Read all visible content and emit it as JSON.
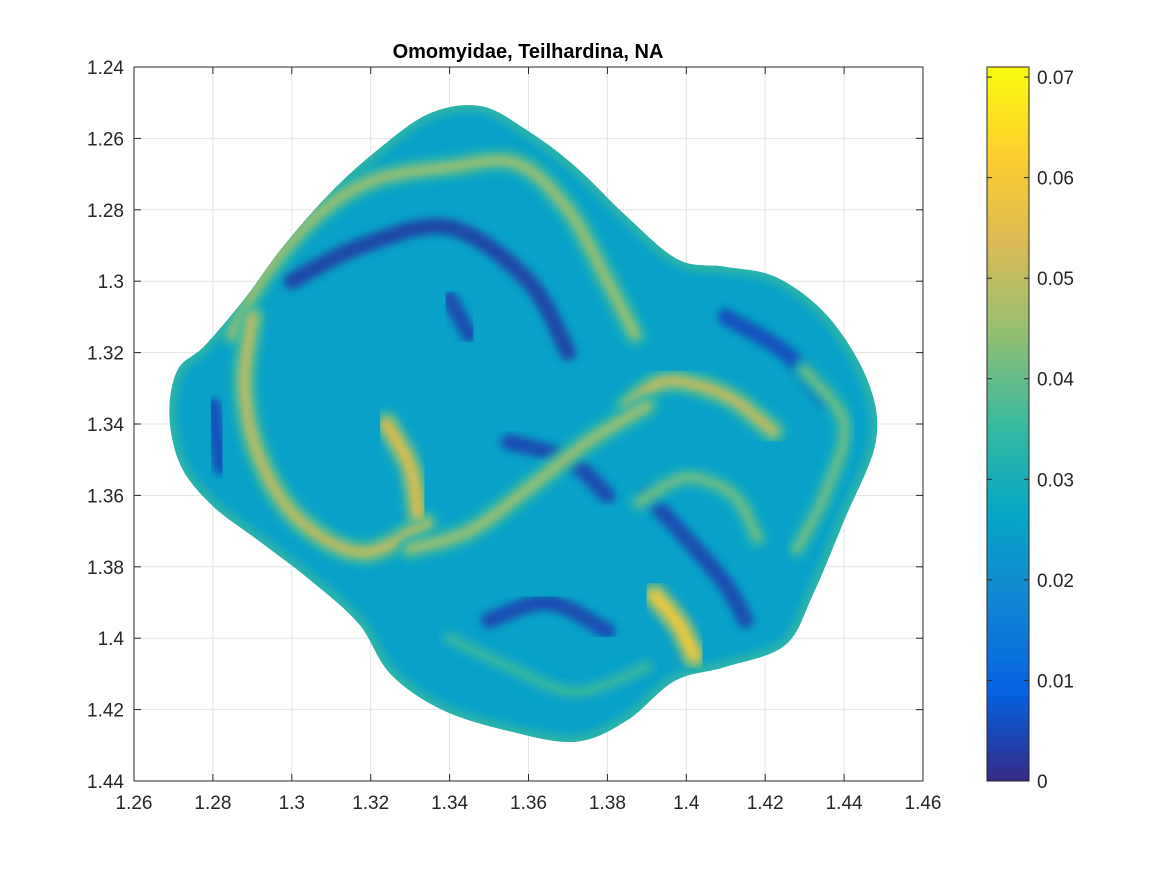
{
  "chart_data": {
    "type": "heatmap",
    "title": "Omomyidae, Teilhardina, NA",
    "xlabel": "",
    "ylabel": "",
    "xlim": [
      1.26,
      1.46
    ],
    "ylim": [
      1.24,
      1.44
    ],
    "y_reversed": true,
    "grid": true,
    "x_ticks": [
      "1.26",
      "1.28",
      "1.3",
      "1.32",
      "1.34",
      "1.36",
      "1.38",
      "1.4",
      "1.42",
      "1.44",
      "1.46"
    ],
    "y_ticks": [
      "1.24",
      "1.26",
      "1.28",
      "1.3",
      "1.32",
      "1.34",
      "1.36",
      "1.38",
      "1.4",
      "1.42",
      "1.44"
    ],
    "colorbar": {
      "colormap": "parula",
      "range": [
        0,
        0.071
      ],
      "ticks": [
        "0",
        "0.01",
        "0.02",
        "0.03",
        "0.04",
        "0.05",
        "0.06",
        "0.07"
      ],
      "colors": [
        "#352a87",
        "#0363e1",
        "#1485d4",
        "#06a7c6",
        "#38b99e",
        "#92bf73",
        "#d9ba56",
        "#fcce2e",
        "#f9fb0e"
      ]
    },
    "surface_outline": [
      [
        1.271,
        1.325
      ],
      [
        1.278,
        1.318
      ],
      [
        1.288,
        1.305
      ],
      [
        1.298,
        1.29
      ],
      [
        1.31,
        1.275
      ],
      [
        1.322,
        1.263
      ],
      [
        1.335,
        1.253
      ],
      [
        1.348,
        1.251
      ],
      [
        1.36,
        1.258
      ],
      [
        1.372,
        1.268
      ],
      [
        1.385,
        1.282
      ],
      [
        1.398,
        1.294
      ],
      [
        1.41,
        1.296
      ],
      [
        1.423,
        1.299
      ],
      [
        1.436,
        1.31
      ],
      [
        1.446,
        1.328
      ],
      [
        1.448,
        1.345
      ],
      [
        1.44,
        1.367
      ],
      [
        1.432,
        1.388
      ],
      [
        1.425,
        1.402
      ],
      [
        1.41,
        1.408
      ],
      [
        1.397,
        1.412
      ],
      [
        1.385,
        1.423
      ],
      [
        1.372,
        1.429
      ],
      [
        1.355,
        1.426
      ],
      [
        1.338,
        1.42
      ],
      [
        1.325,
        1.41
      ],
      [
        1.317,
        1.396
      ],
      [
        1.305,
        1.384
      ],
      [
        1.292,
        1.373
      ],
      [
        1.28,
        1.363
      ],
      [
        1.272,
        1.352
      ],
      [
        1.269,
        1.338
      ]
    ],
    "ridges": [
      {
        "value": 0.045,
        "points": [
          [
            1.285,
            1.315
          ],
          [
            1.292,
            1.3
          ],
          [
            1.305,
            1.283
          ],
          [
            1.32,
            1.272
          ],
          [
            1.34,
            1.268
          ],
          [
            1.357,
            1.267
          ],
          [
            1.37,
            1.28
          ],
          [
            1.38,
            1.3
          ],
          [
            1.387,
            1.315
          ]
        ]
      },
      {
        "value": 0.05,
        "points": [
          [
            1.29,
            1.31
          ],
          [
            1.288,
            1.33
          ],
          [
            1.292,
            1.35
          ],
          [
            1.302,
            1.367
          ],
          [
            1.318,
            1.376
          ],
          [
            1.334,
            1.368
          ]
        ]
      },
      {
        "value": 0.055,
        "points": [
          [
            1.324,
            1.34
          ],
          [
            1.33,
            1.352
          ],
          [
            1.332,
            1.365
          ]
        ]
      },
      {
        "value": 0.05,
        "points": [
          [
            1.385,
            1.335
          ],
          [
            1.395,
            1.328
          ],
          [
            1.41,
            1.332
          ],
          [
            1.422,
            1.342
          ]
        ]
      },
      {
        "value": 0.045,
        "points": [
          [
            1.33,
            1.375
          ],
          [
            1.345,
            1.37
          ],
          [
            1.36,
            1.358
          ],
          [
            1.375,
            1.345
          ],
          [
            1.39,
            1.335
          ]
        ]
      },
      {
        "value": 0.06,
        "points": [
          [
            1.392,
            1.388
          ],
          [
            1.398,
            1.396
          ],
          [
            1.402,
            1.405
          ]
        ]
      },
      {
        "value": 0.04,
        "points": [
          [
            1.388,
            1.362
          ],
          [
            1.4,
            1.355
          ],
          [
            1.412,
            1.36
          ],
          [
            1.418,
            1.372
          ]
        ]
      },
      {
        "value": 0.04,
        "points": [
          [
            1.43,
            1.325
          ],
          [
            1.44,
            1.34
          ],
          [
            1.435,
            1.36
          ],
          [
            1.428,
            1.375
          ]
        ]
      },
      {
        "value": 0.035,
        "points": [
          [
            1.34,
            1.4
          ],
          [
            1.355,
            1.408
          ],
          [
            1.372,
            1.415
          ],
          [
            1.39,
            1.408
          ]
        ]
      }
    ],
    "valleys": [
      {
        "value": 0.003,
        "points": [
          [
            1.3,
            1.3
          ],
          [
            1.318,
            1.29
          ],
          [
            1.34,
            1.285
          ],
          [
            1.36,
            1.3
          ],
          [
            1.37,
            1.32
          ]
        ]
      },
      {
        "value": 0.004,
        "points": [
          [
            1.34,
            1.305
          ],
          [
            1.345,
            1.315
          ]
        ]
      },
      {
        "value": 0.004,
        "points": [
          [
            1.355,
            1.345
          ],
          [
            1.37,
            1.35
          ],
          [
            1.38,
            1.36
          ]
        ]
      },
      {
        "value": 0.004,
        "points": [
          [
            1.39,
            1.36
          ],
          [
            1.4,
            1.372
          ],
          [
            1.41,
            1.385
          ],
          [
            1.415,
            1.395
          ]
        ]
      },
      {
        "value": 0.004,
        "points": [
          [
            1.35,
            1.395
          ],
          [
            1.365,
            1.39
          ],
          [
            1.38,
            1.398
          ]
        ]
      },
      {
        "value": 0.005,
        "points": [
          [
            1.41,
            1.31
          ],
          [
            1.425,
            1.32
          ],
          [
            1.435,
            1.333
          ]
        ]
      },
      {
        "value": 0.005,
        "points": [
          [
            1.28,
            1.335
          ],
          [
            1.282,
            1.352
          ]
        ]
      }
    ]
  }
}
